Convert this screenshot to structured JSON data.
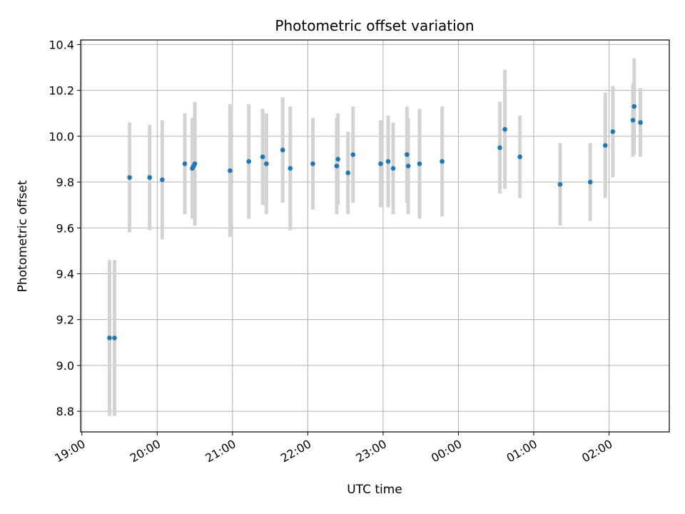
{
  "chart_data": {
    "type": "scatter",
    "title": "Photometric offset variation",
    "xlabel": "UTC time",
    "ylabel": "Photometric offset",
    "x_unit": "UTC time (HH:MM); points after midnight carry 24:xx / 25:xx / 26:xx",
    "xlim": [
      "18:59",
      "26:48"
    ],
    "ylim": [
      8.71,
      10.42
    ],
    "x_ticks": [
      "19:00",
      "20:00",
      "21:00",
      "22:00",
      "23:00",
      "00:00",
      "01:00",
      "02:00"
    ],
    "y_ticks": [
      8.8,
      9.0,
      9.2,
      9.4,
      9.6,
      9.8,
      10.0,
      10.2,
      10.4
    ],
    "grid": true,
    "colors": {
      "points": "#1f77b4",
      "errorbars": "#d3d3d3",
      "grid": "#b0b0b0"
    },
    "points": [
      {
        "x": "19:22",
        "y": 9.12,
        "err": 0.34
      },
      {
        "x": "19:26",
        "y": 9.12,
        "err": 0.34
      },
      {
        "x": "19:38",
        "y": 9.82,
        "err": 0.24
      },
      {
        "x": "19:54",
        "y": 9.82,
        "err": 0.23
      },
      {
        "x": "20:04",
        "y": 9.81,
        "err": 0.26
      },
      {
        "x": "20:22",
        "y": 9.88,
        "err": 0.22
      },
      {
        "x": "20:28",
        "y": 9.86,
        "err": 0.22
      },
      {
        "x": "20:29",
        "y": 9.87,
        "err": 0.21
      },
      {
        "x": "20:30",
        "y": 9.88,
        "err": 0.27
      },
      {
        "x": "20:58",
        "y": 9.85,
        "err": 0.29
      },
      {
        "x": "21:13",
        "y": 9.89,
        "err": 0.25
      },
      {
        "x": "21:24",
        "y": 9.91,
        "err": 0.21
      },
      {
        "x": "21:27",
        "y": 9.88,
        "err": 0.22
      },
      {
        "x": "21:40",
        "y": 9.94,
        "err": 0.23
      },
      {
        "x": "21:46",
        "y": 9.86,
        "err": 0.27
      },
      {
        "x": "22:04",
        "y": 9.88,
        "err": 0.2
      },
      {
        "x": "22:23",
        "y": 9.87,
        "err": 0.21
      },
      {
        "x": "22:24",
        "y": 9.9,
        "err": 0.2
      },
      {
        "x": "22:32",
        "y": 9.84,
        "err": 0.18
      },
      {
        "x": "22:36",
        "y": 9.92,
        "err": 0.21
      },
      {
        "x": "22:58",
        "y": 9.88,
        "err": 0.19
      },
      {
        "x": "23:04",
        "y": 9.89,
        "err": 0.2
      },
      {
        "x": "23:08",
        "y": 9.86,
        "err": 0.2
      },
      {
        "x": "23:19",
        "y": 9.92,
        "err": 0.21
      },
      {
        "x": "23:20",
        "y": 9.87,
        "err": 0.21
      },
      {
        "x": "23:29",
        "y": 9.88,
        "err": 0.24
      },
      {
        "x": "23:47",
        "y": 9.89,
        "err": 0.24
      },
      {
        "x": "24:33",
        "y": 9.95,
        "err": 0.2
      },
      {
        "x": "24:37",
        "y": 10.03,
        "err": 0.26
      },
      {
        "x": "24:49",
        "y": 9.91,
        "err": 0.18
      },
      {
        "x": "25:21",
        "y": 9.79,
        "err": 0.18
      },
      {
        "x": "25:45",
        "y": 9.8,
        "err": 0.17
      },
      {
        "x": "25:57",
        "y": 9.96,
        "err": 0.23
      },
      {
        "x": "26:03",
        "y": 10.02,
        "err": 0.2
      },
      {
        "x": "26:19",
        "y": 10.07,
        "err": 0.16
      },
      {
        "x": "26:20",
        "y": 10.13,
        "err": 0.21
      },
      {
        "x": "26:25",
        "y": 10.06,
        "err": 0.15
      }
    ]
  }
}
